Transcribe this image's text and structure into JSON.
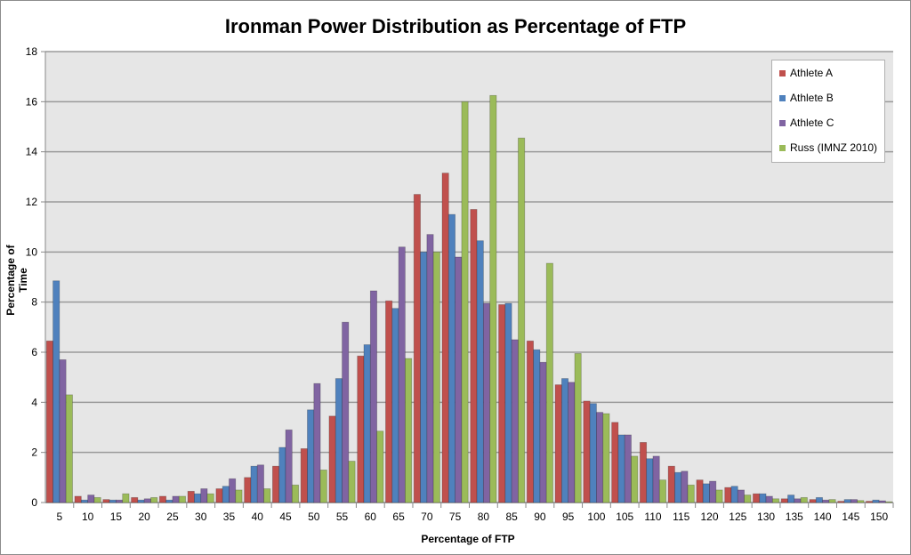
{
  "chart_data": {
    "type": "bar",
    "title": "Ironman Power Distribution as Percentage of FTP",
    "xlabel": "Percentage of FTP",
    "ylabel": "Percentage of Time",
    "ylim": [
      0,
      18
    ],
    "yticks": [
      "0",
      "2",
      "4",
      "6",
      "8",
      "10",
      "12",
      "14",
      "16",
      "18"
    ],
    "grid": true,
    "legend_position": "top-right",
    "categories": [
      "5",
      "10",
      "15",
      "20",
      "25",
      "30",
      "35",
      "40",
      "45",
      "50",
      "55",
      "60",
      "65",
      "70",
      "75",
      "80",
      "85",
      "90",
      "95",
      "100",
      "105",
      "110",
      "115",
      "120",
      "125",
      "130",
      "135",
      "140",
      "145",
      "150"
    ],
    "series": [
      {
        "name": "Athlete A",
        "color": "#c0504d",
        "values": [
          6.45,
          0.25,
          0.12,
          0.2,
          0.25,
          0.45,
          0.55,
          1.0,
          1.45,
          2.15,
          3.45,
          5.85,
          8.05,
          12.3,
          13.15,
          11.7,
          7.9,
          6.45,
          4.7,
          4.05,
          3.2,
          2.4,
          1.45,
          0.9,
          0.6,
          0.35,
          0.15,
          0.12,
          0.05,
          0.05
        ]
      },
      {
        "name": "Athlete B",
        "color": "#4f81bd",
        "values": [
          8.85,
          0.1,
          0.1,
          0.1,
          0.1,
          0.35,
          0.65,
          1.45,
          2.2,
          3.7,
          4.95,
          6.3,
          7.75,
          10.0,
          11.5,
          10.45,
          7.95,
          6.1,
          4.95,
          3.95,
          2.7,
          1.75,
          1.2,
          0.75,
          0.65,
          0.35,
          0.3,
          0.2,
          0.12,
          0.1
        ]
      },
      {
        "name": "Athlete C",
        "color": "#8064a2",
        "values": [
          5.7,
          0.3,
          0.1,
          0.15,
          0.25,
          0.55,
          0.95,
          1.5,
          2.9,
          4.75,
          7.2,
          8.45,
          10.2,
          10.7,
          9.8,
          7.95,
          6.5,
          5.6,
          4.8,
          3.6,
          2.7,
          1.85,
          1.25,
          0.85,
          0.5,
          0.25,
          0.15,
          0.1,
          0.12,
          0.07
        ]
      },
      {
        "name": "Russ (IMNZ 2010)",
        "color": "#9bbb59",
        "values": [
          4.3,
          0.2,
          0.35,
          0.2,
          0.25,
          0.35,
          0.5,
          0.55,
          0.7,
          1.3,
          1.65,
          2.85,
          5.75,
          10.0,
          16.0,
          16.25,
          14.55,
          9.55,
          5.95,
          3.55,
          1.85,
          0.9,
          0.7,
          0.5,
          0.3,
          0.15,
          0.2,
          0.12,
          0.08,
          0.03
        ]
      }
    ]
  }
}
